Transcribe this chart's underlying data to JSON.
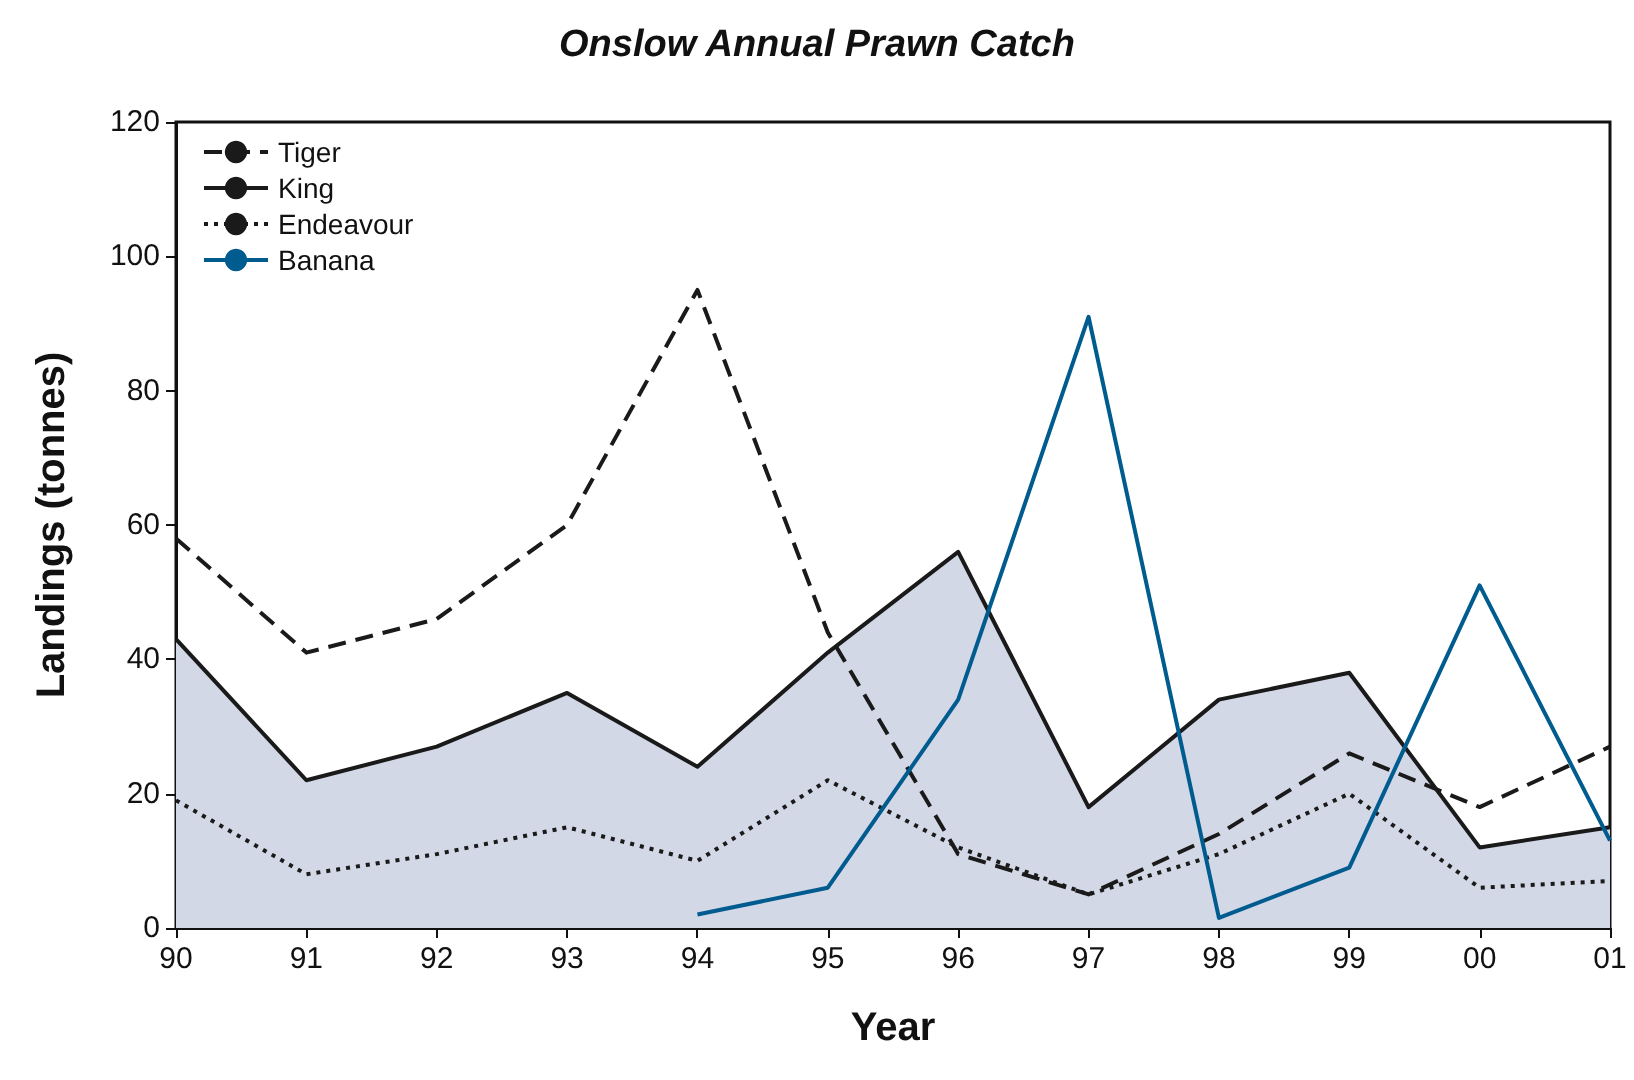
{
  "chart_data": {
    "type": "line",
    "title": "Onslow Annual Prawn Catch",
    "xlabel": "Year",
    "ylabel": "Landings (tonnes)",
    "categories": [
      "90",
      "91",
      "92",
      "93",
      "94",
      "95",
      "96",
      "97",
      "98",
      "99",
      "00",
      "01"
    ],
    "series": [
      {
        "name": "Tiger",
        "color": "#1a1a1a",
        "line_style": "dashed",
        "values": [
          58,
          41,
          46,
          60,
          95,
          44,
          11,
          5,
          14,
          26,
          18,
          27
        ]
      },
      {
        "name": "King",
        "color": "#1a1a1a",
        "type": "area",
        "line_style": "solid",
        "values": [
          43,
          22,
          27,
          35,
          24,
          41,
          56,
          18,
          34,
          38,
          12,
          15
        ]
      },
      {
        "name": "Endeavour",
        "color": "#1a1a1a",
        "line_style": "dotted",
        "values": [
          19,
          8,
          11,
          15,
          10,
          22,
          12,
          5,
          11,
          20,
          6,
          7
        ]
      },
      {
        "name": "Banana",
        "color": "#005b8f",
        "line_style": "solid",
        "values": [
          null,
          null,
          null,
          null,
          2,
          6,
          34,
          91,
          1.5,
          9,
          51,
          13
        ]
      }
    ],
    "ylim": [
      0,
      120
    ],
    "yticks": [
      0,
      20,
      40,
      60,
      80,
      100,
      120
    ],
    "grid": false,
    "legend": "top left",
    "marker": "none"
  }
}
